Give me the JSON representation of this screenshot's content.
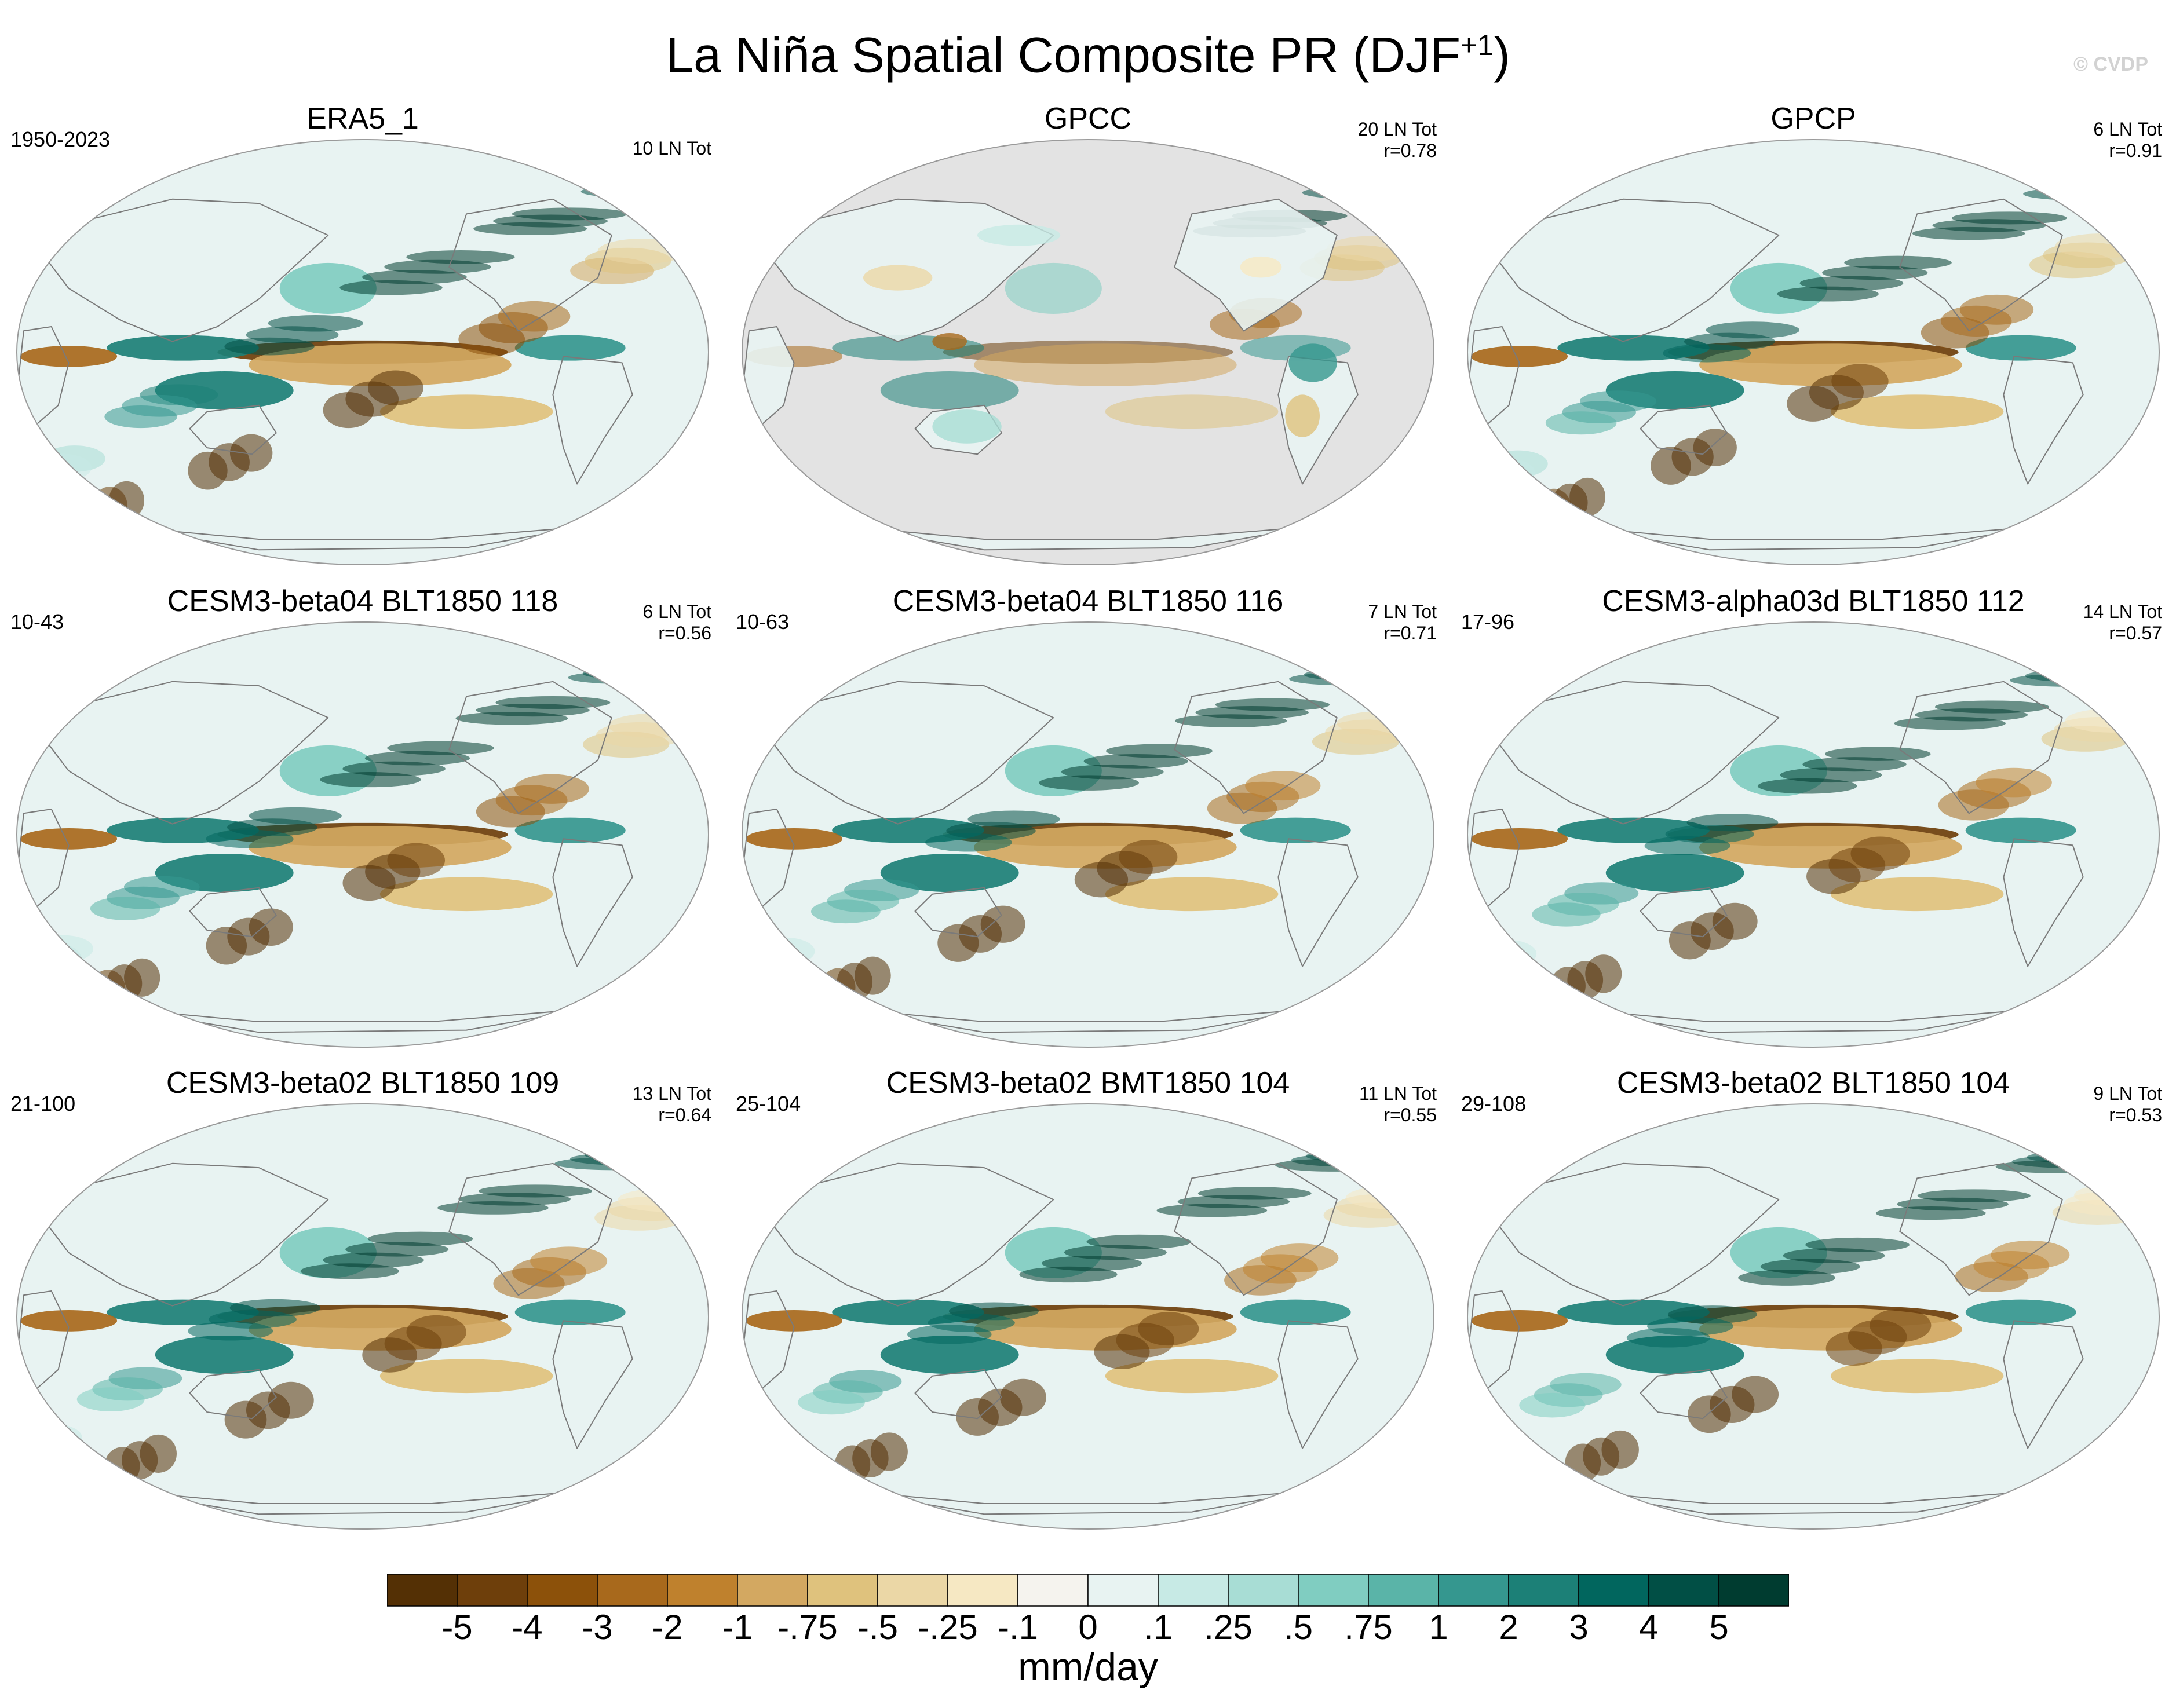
{
  "figure": {
    "title": "La Niña Spatial Composite PR (DJF",
    "title_sup": "+1",
    "title_close": ")",
    "watermark": "© CVDP"
  },
  "panels": [
    {
      "title": "ERA5_1",
      "left_text": "1950-2023",
      "right_text": "10 LN Tot",
      "land_only": false,
      "variant": 1.0
    },
    {
      "title": "GPCC",
      "left_text": "",
      "right_text": "20 LN Tot\nr=0.78",
      "land_only": true,
      "variant": 2.0
    },
    {
      "title": "GPCP",
      "left_text": "",
      "right_text": "6 LN Tot\nr=0.91",
      "land_only": false,
      "variant": 3.0
    },
    {
      "title": "CESM3-beta04 BLT1850 118",
      "left_text": "10-43",
      "right_text": "6 LN Tot\nr=0.56",
      "land_only": false,
      "variant": 4.0
    },
    {
      "title": "CESM3-beta04 BLT1850 116",
      "left_text": "10-63",
      "right_text": "7 LN Tot\nr=0.71",
      "land_only": false,
      "variant": 5.0
    },
    {
      "title": "CESM3-alpha03d BLT1850 112",
      "left_text": "17-96",
      "right_text": "14 LN Tot\nr=0.57",
      "land_only": false,
      "variant": 6.0
    },
    {
      "title": "CESM3-beta02 BLT1850 109",
      "left_text": "21-100",
      "right_text": "13 LN Tot\nr=0.64",
      "land_only": false,
      "variant": 7.0
    },
    {
      "title": "CESM3-beta02 BMT1850 104",
      "left_text": "25-104",
      "right_text": "11 LN Tot\nr=0.55",
      "land_only": false,
      "variant": 8.0
    },
    {
      "title": "CESM3-beta02 BLT1850 104",
      "left_text": "29-108",
      "right_text": "9 LN Tot\nr=0.53",
      "land_only": false,
      "variant": 9.0
    }
  ],
  "colorbar": {
    "unit": "mm/day",
    "labels": [
      "-5",
      "-4",
      "-3",
      "-2",
      "-1",
      "-.75",
      "-.5",
      "-.25",
      "-.1",
      "0",
      ".1",
      ".25",
      ".5",
      ".75",
      "1",
      "2",
      "3",
      "4",
      "5"
    ],
    "colors": [
      "#543005",
      "#6e3f0b",
      "#8c510a",
      "#a8691c",
      "#bf812d",
      "#d3a861",
      "#dfc27d",
      "#ebd7a6",
      "#f6e8c3",
      "#f5f3ee",
      "#e8f3f2",
      "#c7eae5",
      "#a8ddd5",
      "#80cdc1",
      "#5ab4a8",
      "#35978f",
      "#1c8077",
      "#01665e",
      "#014f45",
      "#003c30"
    ]
  },
  "map_colors": {
    "gpcc_ocean": "#e3e3e3",
    "coast": "#7a7a7a",
    "border": "#9a9a9a"
  }
}
